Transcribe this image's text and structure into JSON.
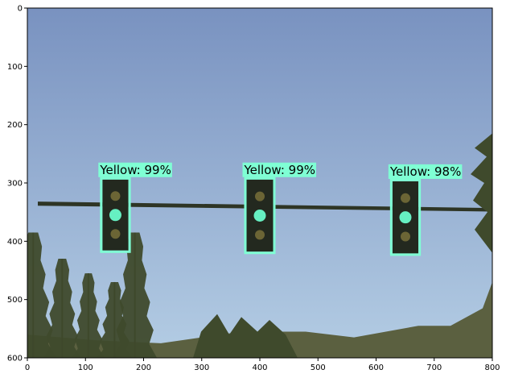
{
  "plot": {
    "x_ticks": [
      "0",
      "100",
      "200",
      "300",
      "400",
      "500",
      "600",
      "700",
      "800"
    ],
    "y_ticks": [
      "0",
      "100",
      "200",
      "300",
      "400",
      "500",
      "600"
    ],
    "x_range": [
      0,
      800
    ],
    "y_range": [
      0,
      600
    ]
  },
  "scene": {
    "sky_top_color": "#7992c0",
    "sky_bottom_color": "#b4cde4",
    "pole_color": "#2e3525",
    "tree_color": "#3f4a2c",
    "hill_color": "#5b6040",
    "housing_color": "#23291f",
    "lamp_off_color": "#6b6535",
    "lamp_on_color": "#66f0c2"
  },
  "detections": {
    "box_color": "#7fffd4",
    "items": [
      {
        "label": "Yellow: 99%",
        "x1": 125,
        "y1": 290,
        "x2": 178,
        "y2": 420
      },
      {
        "label": "Yellow: 99%",
        "x1": 373,
        "y1": 290,
        "x2": 427,
        "y2": 422
      },
      {
        "label": "Yellow: 98%",
        "x1": 624,
        "y1": 293,
        "x2": 677,
        "y2": 425
      }
    ]
  }
}
